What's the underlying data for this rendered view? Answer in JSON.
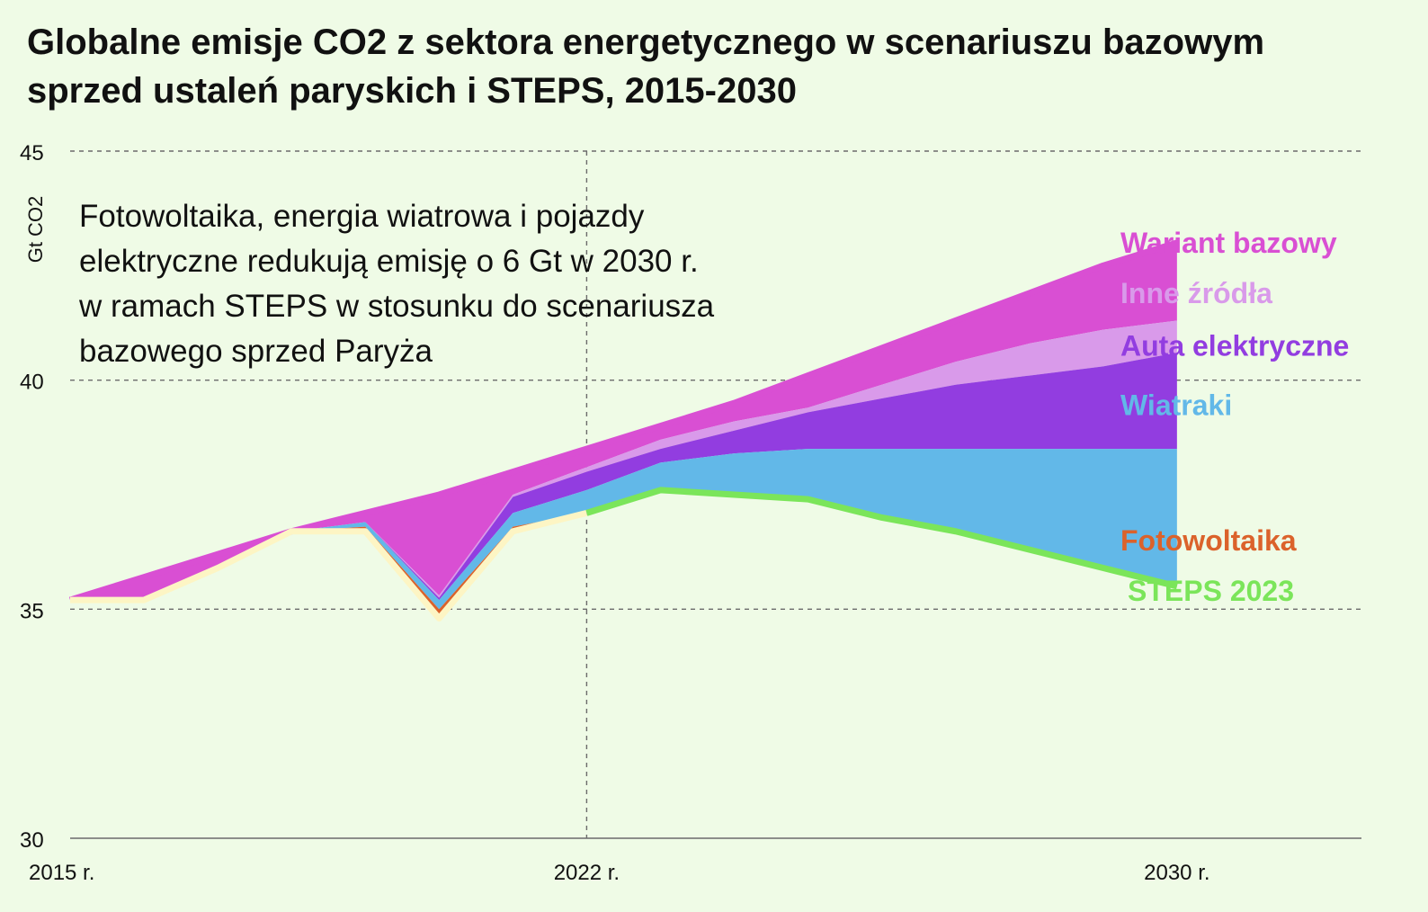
{
  "title": "Globalne emisje CO2 z sektora energetycznego w scenariuszu bazowym sprzed ustaleń paryskich i STEPS, 2015-2030",
  "chart_data": {
    "type": "area",
    "title": "Globalne emisje CO2 z sektora energetycznego w scenariuszu bazowym sprzed ustaleń paryskich i STEPS, 2015-2030",
    "ylabel": "Gt CO2",
    "xlabel": "",
    "ylim": [
      30,
      45
    ],
    "xlim": [
      2015,
      2032.5
    ],
    "yticks": [
      30,
      35,
      40,
      45
    ],
    "xticks": [
      {
        "value": 2015,
        "label": "2015 r."
      },
      {
        "value": 2022,
        "label": "2022 r."
      },
      {
        "value": 2030,
        "label": "2030 r."
      }
    ],
    "grid": "horizontal dashed",
    "annotation_lines": [
      "Fotowoltaika, energia wiatrowa i pojazdy",
      "elektryczne redukują emisję o 6 Gt w 2030 r.",
      "w ramach STEPS w stosunku do scenariusza",
      "bazowego sprzed Paryża"
    ],
    "x": [
      2015,
      2016,
      2017,
      2018,
      2019,
      2020,
      2021,
      2022,
      2023,
      2024,
      2025,
      2026,
      2027,
      2028,
      2029,
      2030
    ],
    "historical": {
      "x": [
        2015,
        2016,
        2017,
        2018,
        2019,
        2020,
        2021,
        2022
      ],
      "values": [
        35.2,
        35.2,
        35.9,
        36.7,
        36.7,
        34.8,
        36.7,
        37.1
      ]
    },
    "series": [
      {
        "name": "Wariant bazowy",
        "color": "#d94fd3",
        "values": [
          35.2,
          35.7,
          36.2,
          36.7,
          37.1,
          37.5,
          38.0,
          38.5,
          39.0,
          39.5,
          40.1,
          40.7,
          41.3,
          41.9,
          42.5,
          43.0
        ]
      },
      {
        "name": "Inne źródła",
        "color": "#d99aea",
        "values": [
          35.2,
          35.2,
          35.9,
          36.7,
          36.9,
          35.3,
          37.5,
          38.1,
          38.7,
          39.1,
          39.4,
          39.9,
          40.4,
          40.8,
          41.1,
          41.3
        ]
      },
      {
        "name": "Auta elektryczne",
        "color": "#923de0",
        "values": [
          35.2,
          35.2,
          35.9,
          36.7,
          36.9,
          35.25,
          37.45,
          38.0,
          38.5,
          38.9,
          39.3,
          39.6,
          39.9,
          40.1,
          40.3,
          40.6
        ]
      },
      {
        "name": "Wiatraki",
        "color": "#62b8e8",
        "values": [
          35.2,
          35.2,
          35.9,
          36.7,
          36.9,
          35.2,
          37.1,
          37.6,
          38.2,
          38.4,
          38.5,
          38.5,
          38.5,
          38.5,
          38.5,
          38.5
        ]
      },
      {
        "name": "Fotowoltaika",
        "color": "#db622b",
        "values": [
          35.2,
          35.2,
          35.9,
          36.7,
          36.8,
          35.0,
          36.8,
          37.1,
          37.6,
          37.5,
          37.4,
          37.0,
          36.7,
          36.3,
          35.9,
          35.5
        ]
      },
      {
        "name": "STEPS 2023",
        "color": "#7be55a",
        "values": [
          null,
          null,
          null,
          null,
          null,
          null,
          null,
          37.1,
          37.6,
          37.5,
          37.4,
          37.0,
          36.7,
          36.3,
          35.9,
          35.5
        ]
      }
    ]
  }
}
